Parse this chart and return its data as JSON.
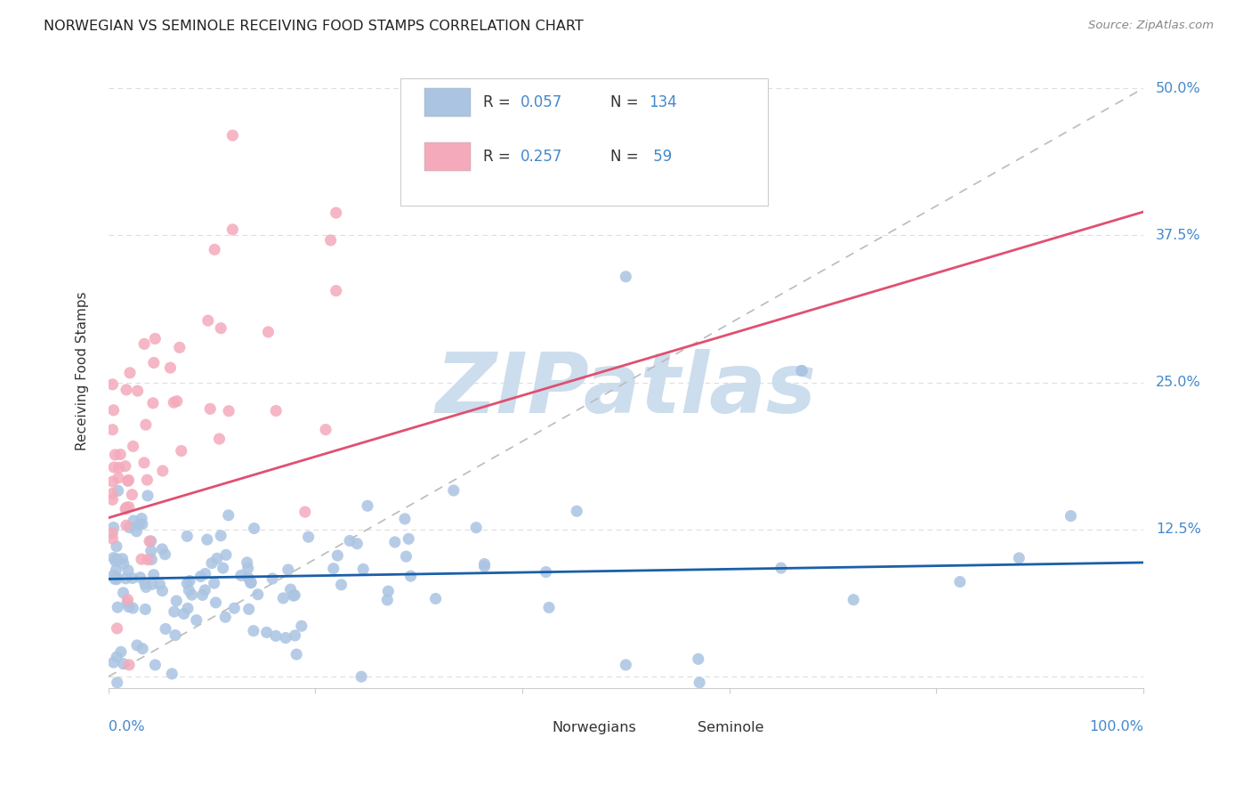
{
  "title": "NORWEGIAN VS SEMINOLE RECEIVING FOOD STAMPS CORRELATION CHART",
  "source": "Source: ZipAtlas.com",
  "ylabel": "Receiving Food Stamps",
  "legend_norwegian_R": "0.057",
  "legend_norwegian_N": "134",
  "legend_seminole_R": "0.257",
  "legend_seminole_N": "59",
  "norwegian_color": "#aac4e2",
  "seminole_color": "#f4aabb",
  "norwegian_line_color": "#1a5fa8",
  "seminole_line_color": "#e05070",
  "diagonal_color": "#bbbbbb",
  "watermark": "ZIPatlas",
  "watermark_color": "#ccdded",
  "background_color": "#ffffff",
  "grid_color": "#dddddd",
  "label_color": "#4488cc",
  "text_color": "#333333",
  "source_color": "#888888",
  "title_color": "#222222",
  "ytick_vals": [
    0.0,
    0.125,
    0.25,
    0.375,
    0.5
  ],
  "ytick_labels": [
    "",
    "12.5%",
    "25.0%",
    "37.5%",
    "50.0%"
  ],
  "xlim": [
    0.0,
    1.0
  ],
  "ylim": [
    -0.01,
    0.53
  ],
  "nor_line_x": [
    0.0,
    1.0
  ],
  "nor_line_y": [
    0.083,
    0.097
  ],
  "sem_line_x": [
    0.0,
    1.0
  ],
  "sem_line_y": [
    0.135,
    0.395
  ]
}
